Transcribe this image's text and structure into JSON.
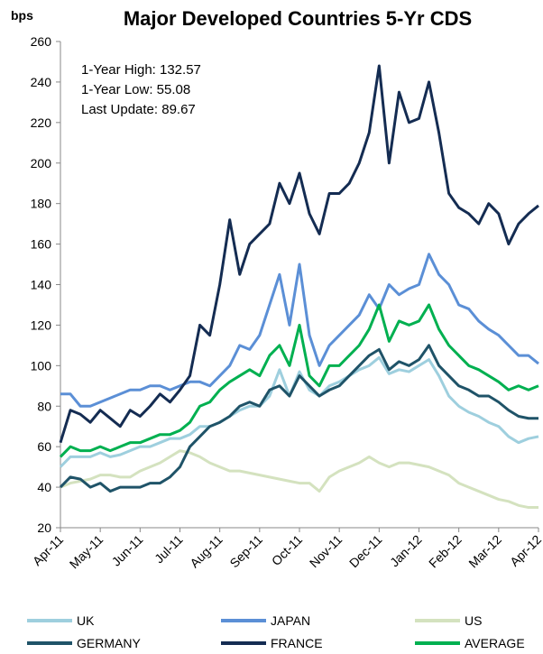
{
  "chart_data": {
    "type": "line",
    "title": "Major Developed Countries  5-Yr CDS",
    "y_label": "bps",
    "annotations": [
      "1-Year High: 132.57",
      "1-Year Low: 55.08",
      "Last Update: 89.67"
    ],
    "categories": [
      "Apr-11",
      null,
      null,
      null,
      "May-11",
      null,
      null,
      null,
      "Jun-11",
      null,
      null,
      null,
      "Jul-11",
      null,
      null,
      null,
      "Aug-11",
      null,
      null,
      null,
      "Sep-11",
      null,
      null,
      null,
      "Oct-11",
      null,
      null,
      null,
      "Nov-11",
      null,
      null,
      null,
      "Dec-11",
      null,
      null,
      null,
      "Jan-12",
      null,
      null,
      null,
      "Feb-12",
      null,
      null,
      null,
      "Mar-12",
      null,
      null,
      null,
      "Apr-12"
    ],
    "ylim": [
      20,
      260
    ],
    "yticks": [
      20,
      40,
      60,
      80,
      100,
      120,
      140,
      160,
      180,
      200,
      220,
      240,
      260
    ],
    "series": [
      {
        "name": "UK",
        "color": "#9ecfde",
        "values": [
          50,
          55,
          55,
          55,
          57,
          55,
          56,
          58,
          60,
          60,
          62,
          64,
          64,
          66,
          70,
          70,
          72,
          75,
          78,
          80,
          80,
          85,
          98,
          85,
          97,
          88,
          85,
          90,
          92,
          95,
          98,
          100,
          104,
          96,
          98,
          97,
          100,
          103,
          95,
          85,
          80,
          77,
          75,
          72,
          70,
          65,
          62,
          64,
          65
        ]
      },
      {
        "name": "JAPAN",
        "color": "#5b8fd6",
        "values": [
          86,
          86,
          80,
          80,
          82,
          84,
          86,
          88,
          88,
          90,
          90,
          88,
          90,
          92,
          92,
          90,
          95,
          100,
          110,
          108,
          115,
          130,
          145,
          120,
          150,
          115,
          100,
          110,
          115,
          120,
          125,
          135,
          128,
          140,
          135,
          138,
          140,
          155,
          145,
          140,
          130,
          128,
          122,
          118,
          115,
          110,
          105,
          105,
          101
        ]
      },
      {
        "name": "US",
        "color": "#d4e2bf",
        "values": [
          40,
          42,
          43,
          44,
          46,
          46,
          45,
          45,
          48,
          50,
          52,
          55,
          58,
          57,
          55,
          52,
          50,
          48,
          48,
          47,
          46,
          45,
          44,
          43,
          42,
          42,
          38,
          45,
          48,
          50,
          52,
          55,
          52,
          50,
          52,
          52,
          51,
          50,
          48,
          46,
          42,
          40,
          38,
          36,
          34,
          33,
          31,
          30,
          30
        ]
      },
      {
        "name": "GERMANY",
        "color": "#1f5368",
        "values": [
          40,
          45,
          44,
          40,
          42,
          38,
          40,
          40,
          40,
          42,
          42,
          45,
          50,
          60,
          65,
          70,
          72,
          75,
          80,
          82,
          80,
          88,
          90,
          85,
          95,
          90,
          85,
          88,
          90,
          95,
          100,
          105,
          108,
          98,
          102,
          100,
          103,
          110,
          100,
          95,
          90,
          88,
          85,
          85,
          82,
          78,
          75,
          74,
          74
        ]
      },
      {
        "name": "FRANCE",
        "color": "#142c52",
        "values": [
          62,
          78,
          76,
          72,
          78,
          74,
          70,
          78,
          75,
          80,
          86,
          82,
          88,
          95,
          120,
          115,
          140,
          172,
          145,
          160,
          165,
          170,
          190,
          180,
          195,
          175,
          165,
          185,
          185,
          190,
          200,
          215,
          248,
          200,
          235,
          220,
          222,
          240,
          215,
          185,
          178,
          175,
          170,
          180,
          175,
          160,
          170,
          175,
          179
        ]
      },
      {
        "name": "AVERAGE",
        "color": "#00b050",
        "values": [
          55,
          60,
          58,
          58,
          60,
          58,
          60,
          62,
          62,
          64,
          66,
          66,
          68,
          72,
          80,
          82,
          88,
          92,
          95,
          98,
          95,
          105,
          110,
          100,
          120,
          95,
          90,
          100,
          100,
          105,
          110,
          118,
          130,
          112,
          122,
          120,
          122,
          130,
          118,
          110,
          105,
          100,
          98,
          95,
          92,
          88,
          90,
          88,
          90
        ]
      }
    ]
  }
}
